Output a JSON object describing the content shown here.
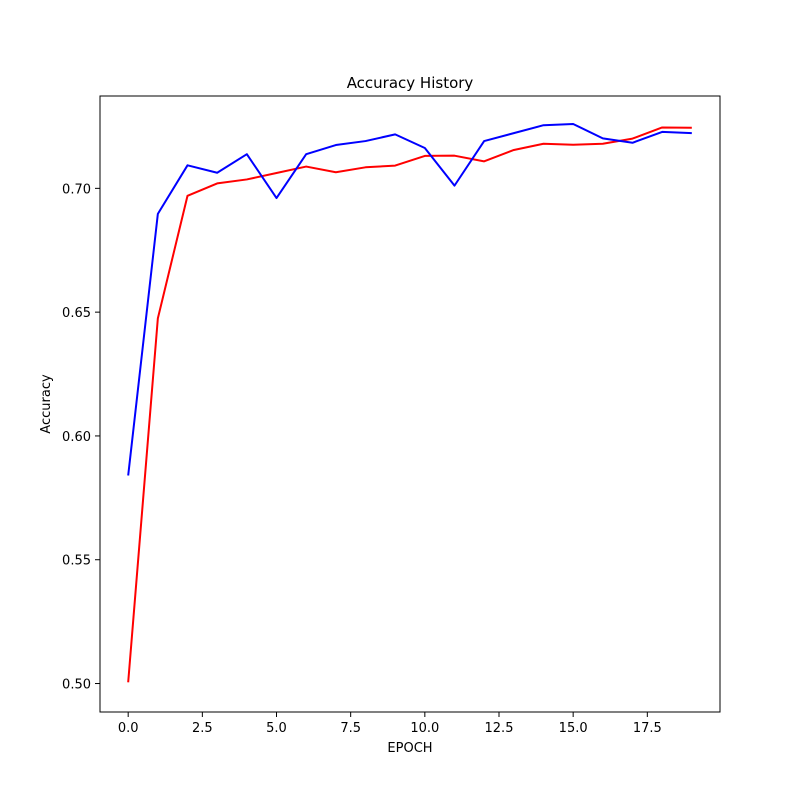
{
  "chart_data": {
    "type": "line",
    "title": "Accuracy History",
    "xlabel": "EPOCH",
    "ylabel": "Accuracy",
    "xlim": [
      -0.95,
      19.95
    ],
    "ylim": [
      0.4885,
      0.7373
    ],
    "xticks": [
      0.0,
      2.5,
      5.0,
      7.5,
      10.0,
      12.5,
      15.0,
      17.5
    ],
    "xtick_labels": [
      "0.0",
      "2.5",
      "5.0",
      "7.5",
      "10.0",
      "12.5",
      "15.0",
      "17.5"
    ],
    "yticks": [
      0.5,
      0.55,
      0.6,
      0.65,
      0.7
    ],
    "ytick_labels": [
      "0.50",
      "0.55",
      "0.60",
      "0.65",
      "0.70"
    ],
    "grid": false,
    "x": [
      0,
      1,
      2,
      3,
      4,
      5,
      6,
      7,
      8,
      9,
      10,
      11,
      12,
      13,
      14,
      15,
      16,
      17,
      18,
      19
    ],
    "series": [
      {
        "color": "#ff0000",
        "values": [
          0.5005,
          0.6475,
          0.697,
          0.702,
          0.7036,
          0.7062,
          0.7088,
          0.7065,
          0.7085,
          0.7092,
          0.7131,
          0.7132,
          0.7109,
          0.7155,
          0.718,
          0.7176,
          0.718,
          0.7201,
          0.7246,
          0.7245
        ]
      },
      {
        "color": "#0000ff",
        "values": [
          0.584,
          0.6897,
          0.7093,
          0.7063,
          0.7138,
          0.6961,
          0.7138,
          0.7175,
          0.7191,
          0.7218,
          0.7163,
          0.7011,
          0.7191,
          0.7223,
          0.7255,
          0.726,
          0.7202,
          0.7184,
          0.7228,
          0.7223
        ]
      }
    ]
  }
}
